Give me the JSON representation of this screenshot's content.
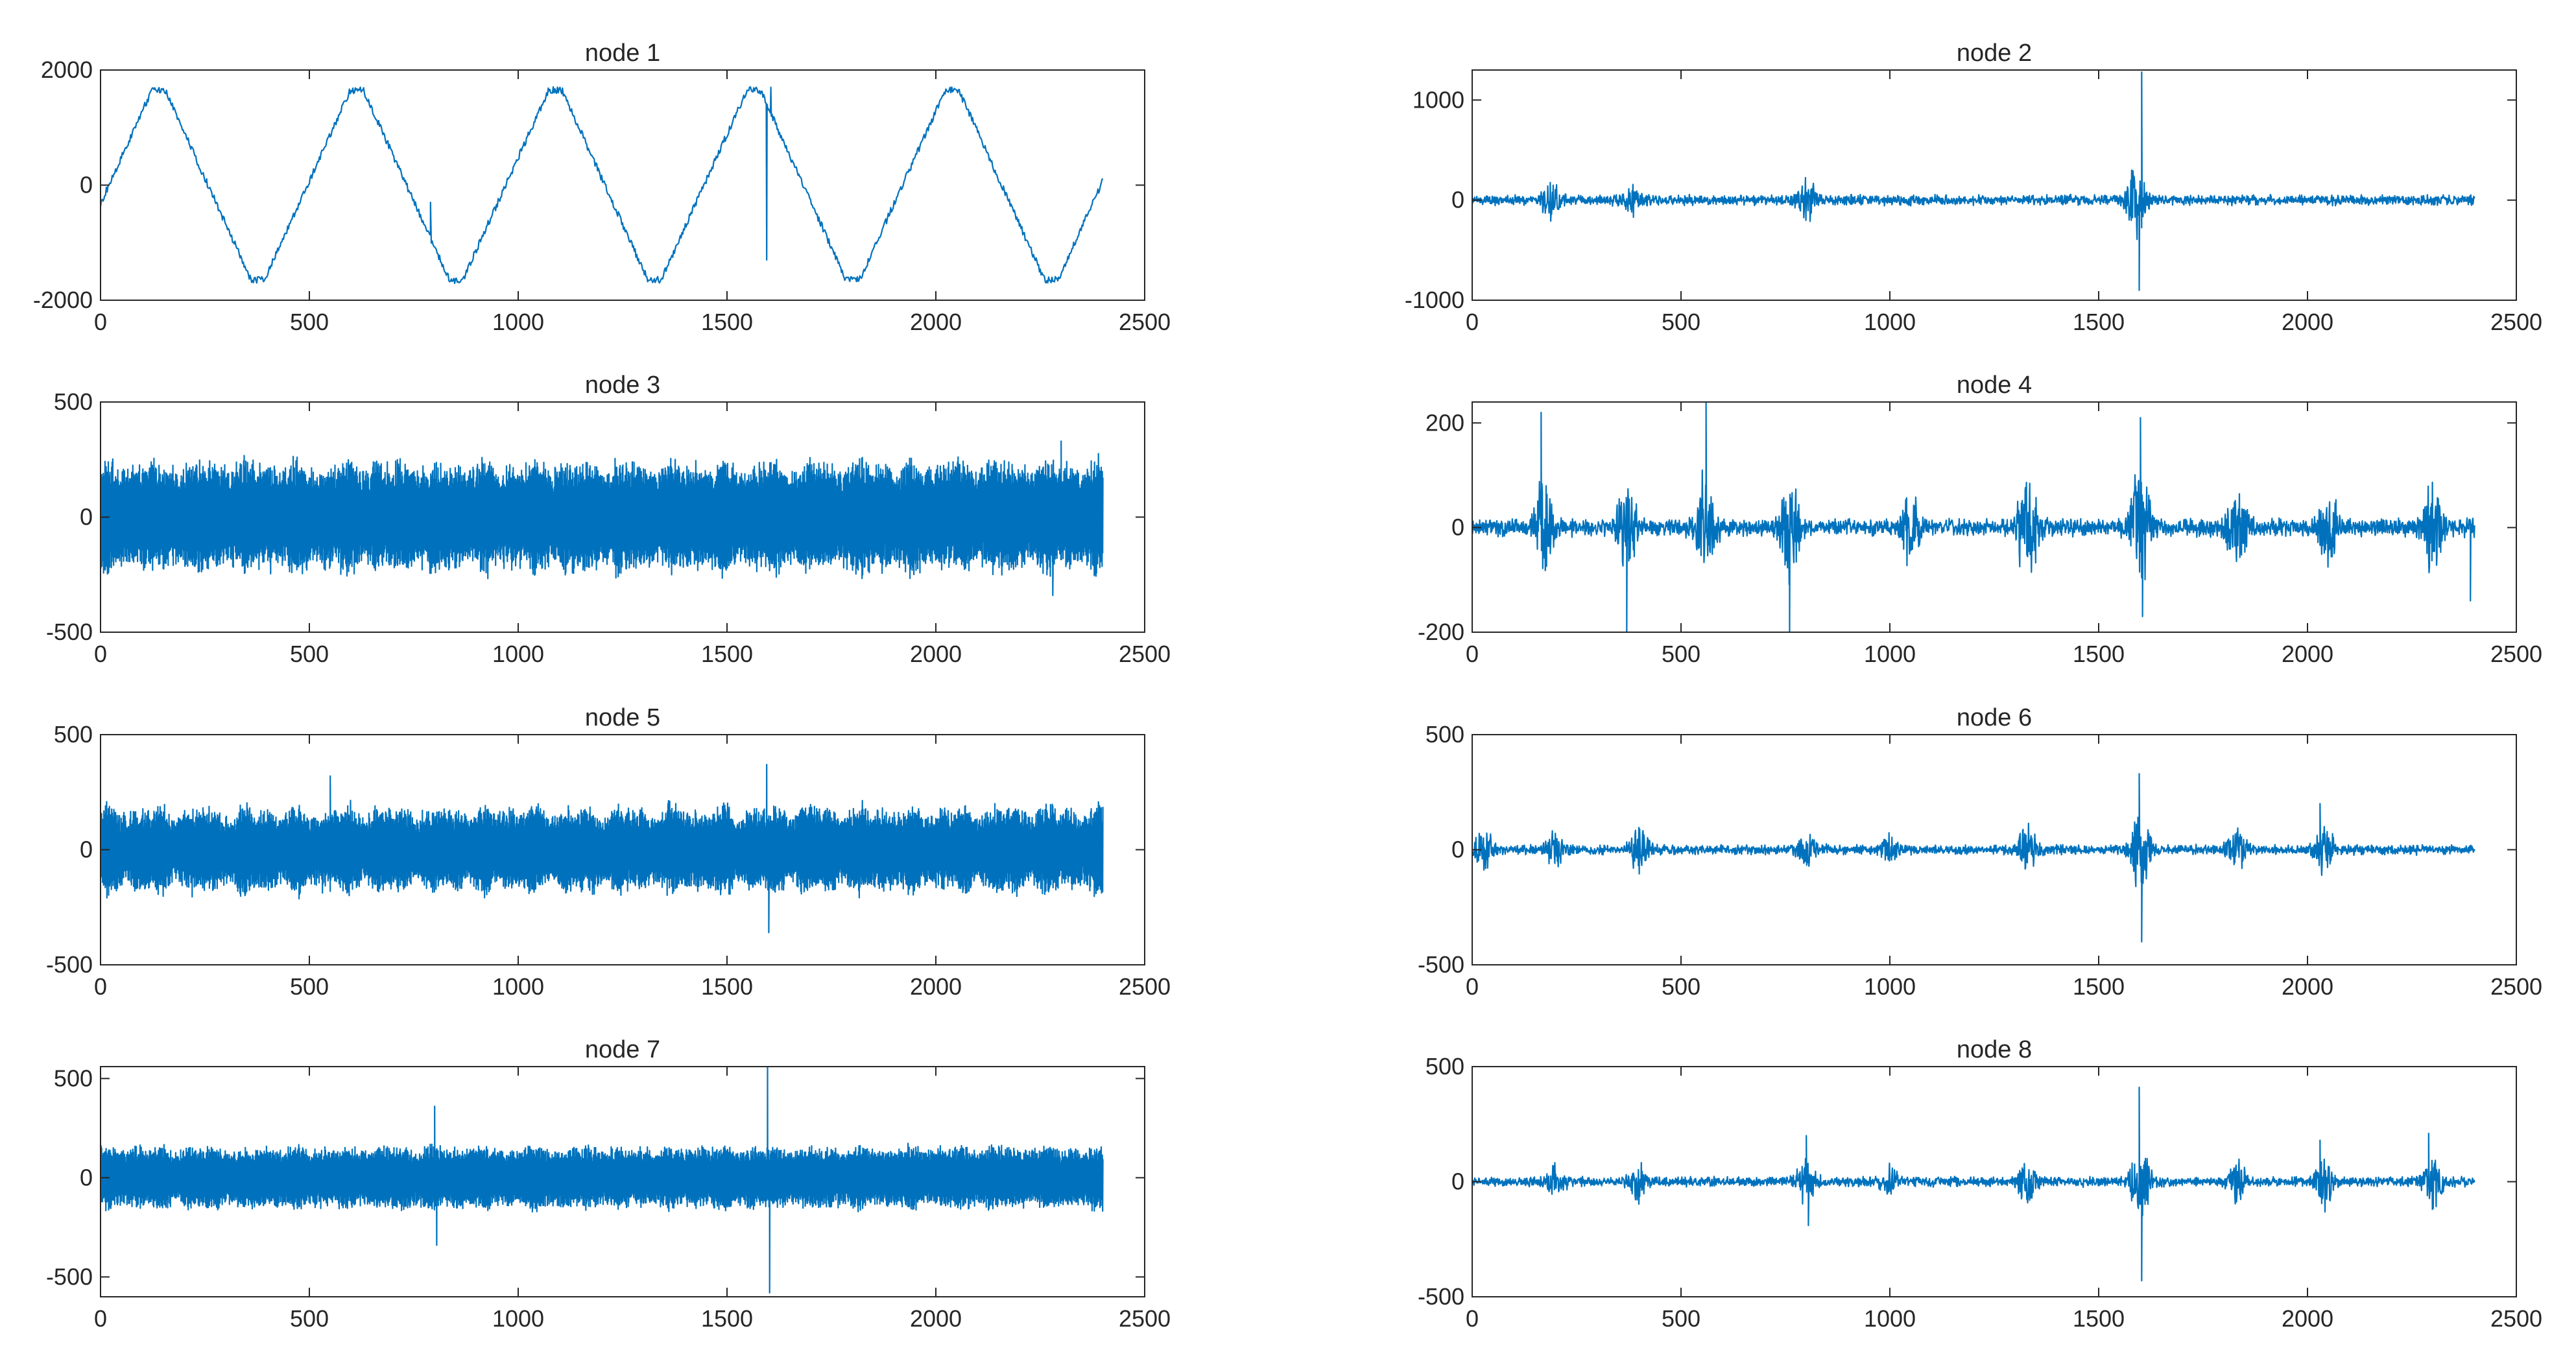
{
  "chart_data": [
    {
      "type": "line",
      "title": "node 1",
      "xlim": [
        0,
        2500
      ],
      "ylim": [
        -2000,
        2000
      ],
      "xticks": [
        0,
        500,
        1000,
        1500,
        2000,
        2500
      ],
      "yticks": [
        -2000,
        0,
        2000
      ],
      "xtick_labels": [
        "0",
        "500",
        "1000",
        "1500",
        "2000",
        "2500"
      ],
      "ytick_labels": [
        "-2000",
        "0",
        "2000"
      ],
      "x_end": 2400,
      "series": [
        {
          "color": "#0072BD",
          "kind": "waveform",
          "period": 475,
          "amplitude": 1700,
          "phase_offset": 20,
          "spikes": [
            {
              "x": 790,
              "y": -300
            },
            {
              "x": 1595,
              "y": -1300
            },
            {
              "x": 1605,
              "y": 1700
            }
          ]
        }
      ]
    },
    {
      "type": "line",
      "title": "node 2",
      "xlim": [
        0,
        2500
      ],
      "ylim": [
        -1000,
        1300
      ],
      "xticks": [
        0,
        500,
        1000,
        1500,
        2000,
        2500
      ],
      "yticks": [
        -1000,
        0,
        1000
      ],
      "xtick_labels": [
        "0",
        "500",
        "1000",
        "1500",
        "2000",
        "2500"
      ],
      "ytick_labels": [
        "-1000",
        "0",
        "1000"
      ],
      "x_end": 2400,
      "series": [
        {
          "color": "#0072BD",
          "kind": "oscillation",
          "base_amplitude": 60,
          "bursts": [
            {
              "x": 190,
              "amp": 200
            },
            {
              "x": 380,
              "amp": 180
            },
            {
              "x": 800,
              "amp": 300
            },
            {
              "x": 1590,
              "amp": 400
            }
          ],
          "spikes": [
            {
              "x": 1597,
              "y": -900
            },
            {
              "x": 1603,
              "y": 1280
            }
          ]
        }
      ]
    },
    {
      "type": "line",
      "title": "node 3",
      "xlim": [
        0,
        2500
      ],
      "ylim": [
        -500,
        500
      ],
      "xticks": [
        0,
        500,
        1000,
        1500,
        2000,
        2500
      ],
      "yticks": [
        -500,
        0,
        500
      ],
      "xtick_labels": [
        "0",
        "500",
        "1000",
        "1500",
        "2000",
        "2500"
      ],
      "ytick_labels": [
        "-500",
        "0",
        "500"
      ],
      "x_end": 2400,
      "series": [
        {
          "color": "#0072BD",
          "kind": "dense",
          "base_amplitude": 250,
          "modulation": 0.25,
          "bursts": [],
          "spikes": [
            {
              "x": 2300,
              "y": 330
            },
            {
              "x": 2280,
              "y": -340
            }
          ]
        }
      ]
    },
    {
      "type": "line",
      "title": "node 4",
      "xlim": [
        0,
        2500
      ],
      "ylim": [
        -200,
        240
      ],
      "xticks": [
        0,
        500,
        1000,
        1500,
        2000,
        2500
      ],
      "yticks": [
        -200,
        0,
        200
      ],
      "xtick_labels": [
        "0",
        "500",
        "1000",
        "1500",
        "2000",
        "2500"
      ],
      "ytick_labels": [
        "-200",
        "0",
        "200"
      ],
      "x_end": 2400,
      "series": [
        {
          "color": "#0072BD",
          "kind": "bursty",
          "base_amplitude": 20,
          "bursts": [
            {
              "x": 170,
              "amp": 110
            },
            {
              "x": 370,
              "amp": 110
            },
            {
              "x": 560,
              "amp": 120
            },
            {
              "x": 760,
              "amp": 110
            },
            {
              "x": 1050,
              "amp": 70
            },
            {
              "x": 1330,
              "amp": 120
            },
            {
              "x": 1600,
              "amp": 140
            },
            {
              "x": 1830,
              "amp": 90
            },
            {
              "x": 2050,
              "amp": 80
            },
            {
              "x": 2300,
              "amp": 90
            }
          ],
          "spikes": [
            {
              "x": 165,
              "y": 220
            },
            {
              "x": 370,
              "y": -200
            },
            {
              "x": 560,
              "y": 240
            },
            {
              "x": 760,
              "y": -200
            },
            {
              "x": 1600,
              "y": 210
            },
            {
              "x": 1605,
              "y": -170
            },
            {
              "x": 2390,
              "y": -140
            }
          ]
        }
      ]
    },
    {
      "type": "line",
      "title": "node 5",
      "xlim": [
        0,
        2500
      ],
      "ylim": [
        -500,
        500
      ],
      "xticks": [
        0,
        500,
        1000,
        1500,
        2000,
        2500
      ],
      "yticks": [
        -500,
        0,
        500
      ],
      "xtick_labels": [
        "0",
        "500",
        "1000",
        "1500",
        "2000",
        "2500"
      ],
      "ytick_labels": [
        "-500",
        "0",
        "500"
      ],
      "x_end": 2400,
      "series": [
        {
          "color": "#0072BD",
          "kind": "dense",
          "base_amplitude": 200,
          "modulation": 0.35,
          "bursts": [],
          "spikes": [
            {
              "x": 550,
              "y": 320
            },
            {
              "x": 1595,
              "y": 370
            },
            {
              "x": 1600,
              "y": -360
            }
          ]
        }
      ]
    },
    {
      "type": "line",
      "title": "node 6",
      "xlim": [
        0,
        2500
      ],
      "ylim": [
        -500,
        500
      ],
      "xticks": [
        0,
        500,
        1000,
        1500,
        2000,
        2500
      ],
      "yticks": [
        -500,
        0,
        500
      ],
      "xtick_labels": [
        "0",
        "500",
        "1000",
        "1500",
        "2000",
        "2500"
      ],
      "ytick_labels": [
        "-500",
        "0",
        "500"
      ],
      "x_end": 2400,
      "series": [
        {
          "color": "#0072BD",
          "kind": "bursty",
          "base_amplitude": 25,
          "bursts": [
            {
              "x": 30,
              "amp": 90
            },
            {
              "x": 200,
              "amp": 90
            },
            {
              "x": 400,
              "amp": 110
            },
            {
              "x": 800,
              "amp": 90
            },
            {
              "x": 1000,
              "amp": 80
            },
            {
              "x": 1330,
              "amp": 110
            },
            {
              "x": 1600,
              "amp": 220
            },
            {
              "x": 1830,
              "amp": 120
            },
            {
              "x": 2040,
              "amp": 120
            }
          ],
          "spikes": [
            {
              "x": 1597,
              "y": 330
            },
            {
              "x": 1603,
              "y": -400
            },
            {
              "x": 2030,
              "y": 200
            }
          ]
        }
      ]
    },
    {
      "type": "line",
      "title": "node 7",
      "xlim": [
        0,
        2500
      ],
      "ylim": [
        -600,
        560
      ],
      "xticks": [
        0,
        500,
        1000,
        1500,
        2000,
        2500
      ],
      "yticks": [
        -500,
        0,
        500
      ],
      "xtick_labels": [
        "0",
        "500",
        "1000",
        "1500",
        "2000",
        "2500"
      ],
      "ytick_labels": [
        "-500",
        "0",
        "500"
      ],
      "x_end": 2400,
      "series": [
        {
          "color": "#0072BD",
          "kind": "dense",
          "base_amplitude": 160,
          "modulation": 0.2,
          "bursts": [],
          "spikes": [
            {
              "x": 800,
              "y": 360
            },
            {
              "x": 805,
              "y": -340
            },
            {
              "x": 1597,
              "y": 560
            },
            {
              "x": 1602,
              "y": -580
            }
          ]
        }
      ]
    },
    {
      "type": "line",
      "title": "node 8",
      "xlim": [
        0,
        2500
      ],
      "ylim": [
        -500,
        500
      ],
      "xticks": [
        0,
        500,
        1000,
        1500,
        2000,
        2500
      ],
      "yticks": [
        -500,
        0,
        500
      ],
      "xtick_labels": [
        "0",
        "500",
        "1000",
        "1500",
        "2000",
        "2500"
      ],
      "ytick_labels": [
        "-500",
        "0",
        "500"
      ],
      "x_end": 2400,
      "series": [
        {
          "color": "#0072BD",
          "kind": "bursty",
          "base_amplitude": 25,
          "bursts": [
            {
              "x": 200,
              "amp": 80
            },
            {
              "x": 400,
              "amp": 90
            },
            {
              "x": 800,
              "amp": 120
            },
            {
              "x": 1000,
              "amp": 70
            },
            {
              "x": 1330,
              "amp": 110
            },
            {
              "x": 1600,
              "amp": 220
            },
            {
              "x": 1830,
              "amp": 110
            },
            {
              "x": 2040,
              "amp": 120
            },
            {
              "x": 2300,
              "amp": 120
            }
          ],
          "spikes": [
            {
              "x": 800,
              "y": 200
            },
            {
              "x": 805,
              "y": -190
            },
            {
              "x": 1597,
              "y": 410
            },
            {
              "x": 1603,
              "y": -430
            },
            {
              "x": 2030,
              "y": 180
            },
            {
              "x": 2290,
              "y": 210
            }
          ]
        }
      ]
    }
  ]
}
